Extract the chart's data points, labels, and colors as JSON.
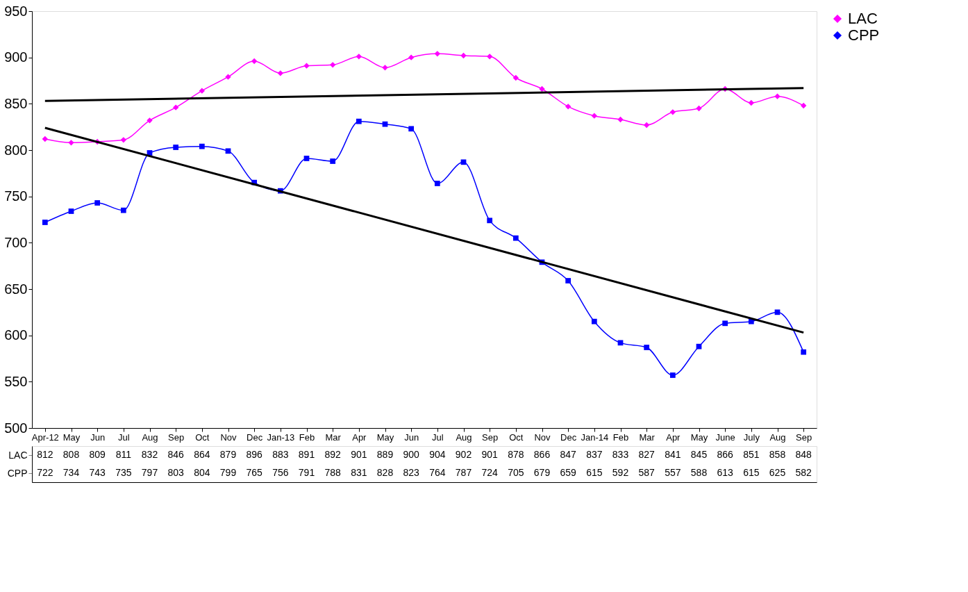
{
  "chart_data": {
    "type": "line",
    "categories": [
      "Apr-12",
      "May",
      "Jun",
      "Jul",
      "Aug",
      "Sep",
      "Oct",
      "Nov",
      "Dec",
      "Jan-13",
      "Feb",
      "Mar",
      "Apr",
      "May",
      "Jun",
      "Jul",
      "Aug",
      "Sep",
      "Oct",
      "Nov",
      "Dec",
      "Jan-14",
      "Feb",
      "Mar",
      "Apr",
      "May",
      "June",
      "July",
      "Aug",
      "Sep"
    ],
    "series": [
      {
        "name": "LAC",
        "color": "#ff00ff",
        "marker": "diamond",
        "value_labels": [
          "812",
          "808",
          "809",
          "811",
          "832",
          "846",
          "864",
          "879",
          "896",
          "883",
          "891",
          "892",
          "901",
          "889",
          "900",
          "904",
          "902",
          "901",
          "878",
          "866",
          "847",
          "837",
          "833",
          "827",
          "841",
          "845",
          "866",
          "851",
          "858",
          "848"
        ],
        "values": [
          812,
          808,
          809,
          811,
          832,
          846,
          864,
          879,
          896,
          883,
          891,
          892,
          901,
          889,
          900,
          904,
          902,
          901,
          878,
          866,
          847,
          837,
          833,
          827,
          841,
          845,
          866,
          851,
          858,
          848
        ]
      },
      {
        "name": "CPP",
        "color": "#0000ff",
        "marker": "square",
        "value_labels": [
          "722",
          "734",
          "743",
          "735",
          "797",
          "803",
          "804",
          "799",
          "765",
          "756",
          "791",
          "788",
          "831",
          "828",
          "823",
          "764",
          "787",
          "724",
          "705",
          "679",
          "659",
          "615",
          "592",
          "587",
          "557",
          "588",
          "613",
          "615",
          "625",
          "582"
        ],
        "values": [
          722,
          734,
          743,
          735,
          797,
          803,
          804,
          799,
          765,
          756,
          791,
          788,
          831,
          828,
          823,
          764,
          787,
          724,
          705,
          679,
          659,
          615,
          592,
          587,
          557,
          588,
          613,
          615,
          625,
          582
        ]
      },
      {
        "type": "line",
        "color": "#000000",
        "marker": "none",
        "values": [
          853,
          null,
          null,
          null,
          null,
          null,
          null,
          null,
          null,
          null,
          null,
          null,
          null,
          null,
          null,
          null,
          null,
          null,
          null,
          null,
          null,
          null,
          null,
          null,
          null,
          null,
          null,
          null,
          null,
          867
        ]
      },
      {
        "type": "line",
        "color": "#000000",
        "marker": "none",
        "values": [
          824,
          null,
          null,
          null,
          null,
          null,
          null,
          null,
          null,
          null,
          null,
          null,
          null,
          null,
          null,
          null,
          null,
          null,
          null,
          null,
          null,
          null,
          null,
          null,
          null,
          null,
          null,
          null,
          null,
          603
        ]
      }
    ],
    "ylim": [
      500,
      950
    ],
    "yticks": [
      500,
      550,
      600,
      650,
      700,
      750,
      800,
      850,
      900,
      950
    ],
    "grid": false,
    "legend": "right"
  }
}
